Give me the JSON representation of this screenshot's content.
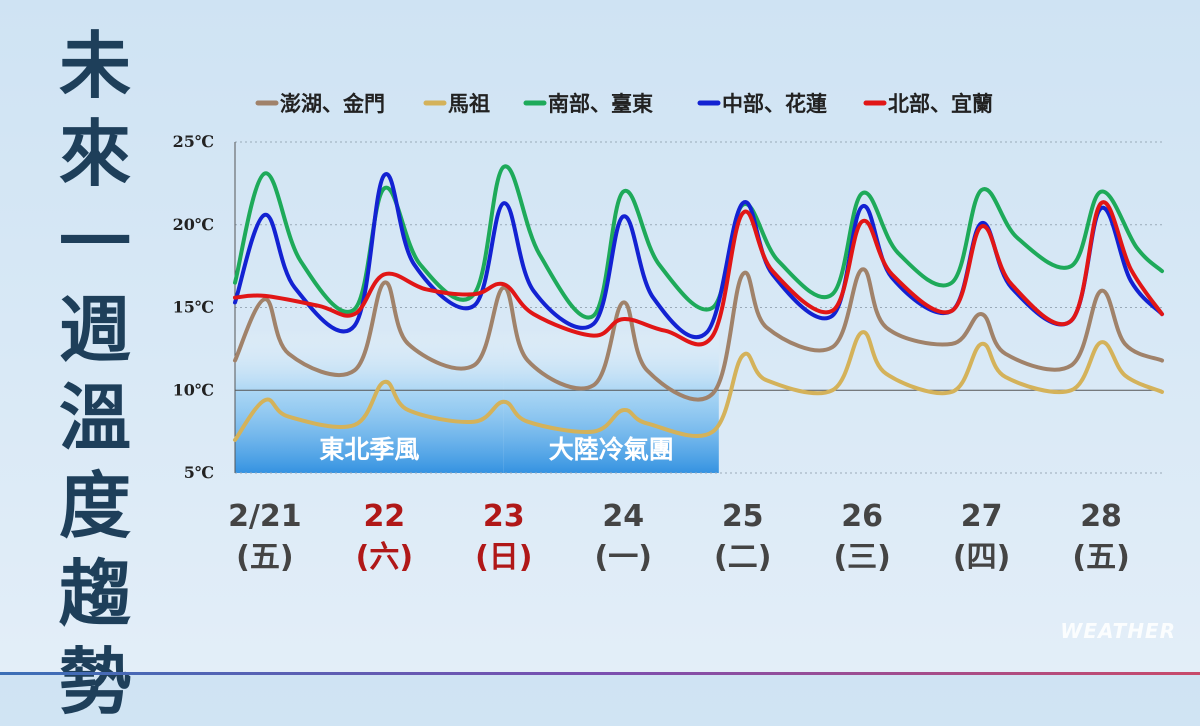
{
  "title_chars": [
    "未",
    "來",
    "一",
    "週",
    "溫",
    "度",
    "趨",
    "勢"
  ],
  "watermark": "WEATHER",
  "colors": {
    "axis_text": "#222222",
    "weekend": "#b01818",
    "weekday": "#444444",
    "title": "#1e3f5a"
  },
  "chart_data": {
    "type": "line",
    "title": "未來一週溫度趨勢",
    "ylim": [
      5,
      25
    ],
    "yticks": [
      5,
      10,
      15,
      20,
      25
    ],
    "ytick_labels": [
      "5℃",
      "10℃",
      "15℃",
      "20℃",
      "25℃"
    ],
    "xlim": [
      0,
      7.76
    ],
    "days": [
      {
        "date": "2/21",
        "weekday": "(五)",
        "weekend": false
      },
      {
        "date": "22",
        "weekday": "(六)",
        "weekend": true
      },
      {
        "date": "23",
        "weekday": "(日)",
        "weekend": true
      },
      {
        "date": "24",
        "weekday": "(一)",
        "weekend": false
      },
      {
        "date": "25",
        "weekday": "(二)",
        "weekend": false
      },
      {
        "date": "26",
        "weekday": "(三)",
        "weekend": false
      },
      {
        "date": "27",
        "weekday": "(四)",
        "weekend": false
      },
      {
        "date": "28",
        "weekday": "(五)",
        "weekend": false
      }
    ],
    "regimes": [
      {
        "label": "東北季風",
        "x0": 0,
        "x1": 2.25
      },
      {
        "label": "大陸冷氣團",
        "x0": 2.25,
        "x1": 4.05
      }
    ],
    "legend": {
      "placement": "top"
    },
    "series": [
      {
        "name": "澎湖、金門",
        "color": "#a0826a",
        "points": [
          [
            0,
            11.8
          ],
          [
            0.25,
            15.5
          ],
          [
            0.45,
            12.2
          ],
          [
            1.0,
            11.2
          ],
          [
            1.25,
            16.5
          ],
          [
            1.45,
            12.8
          ],
          [
            2.0,
            11.5
          ],
          [
            2.25,
            16.2
          ],
          [
            2.45,
            11.8
          ],
          [
            3.0,
            10.3
          ],
          [
            3.25,
            15.3
          ],
          [
            3.45,
            11.2
          ],
          [
            4.0,
            9.8
          ],
          [
            4.25,
            17.0
          ],
          [
            4.45,
            13.8
          ],
          [
            5.0,
            12.6
          ],
          [
            5.25,
            17.3
          ],
          [
            5.45,
            13.8
          ],
          [
            6.0,
            12.8
          ],
          [
            6.25,
            14.6
          ],
          [
            6.45,
            12.2
          ],
          [
            7.0,
            11.5
          ],
          [
            7.25,
            16.0
          ],
          [
            7.45,
            12.8
          ],
          [
            7.76,
            11.8
          ]
        ]
      },
      {
        "name": "馬祖",
        "color": "#d4b25a",
        "points": [
          [
            0,
            7.0
          ],
          [
            0.25,
            9.4
          ],
          [
            0.45,
            8.4
          ],
          [
            1.0,
            7.9
          ],
          [
            1.25,
            10.5
          ],
          [
            1.45,
            8.8
          ],
          [
            2.0,
            8.1
          ],
          [
            2.25,
            9.3
          ],
          [
            2.45,
            8.1
          ],
          [
            3.0,
            7.5
          ],
          [
            3.25,
            8.8
          ],
          [
            3.45,
            8.0
          ],
          [
            4.0,
            7.5
          ],
          [
            4.25,
            12.1
          ],
          [
            4.45,
            10.6
          ],
          [
            5.0,
            10.0
          ],
          [
            5.25,
            13.5
          ],
          [
            5.45,
            11.0
          ],
          [
            6.0,
            9.9
          ],
          [
            6.25,
            12.8
          ],
          [
            6.45,
            10.8
          ],
          [
            7.0,
            10.0
          ],
          [
            7.25,
            12.9
          ],
          [
            7.45,
            10.9
          ],
          [
            7.76,
            9.9
          ]
        ]
      },
      {
        "name": "南部、臺東",
        "color": "#1eaa5a",
        "points": [
          [
            0,
            16.5
          ],
          [
            0.25,
            23.1
          ],
          [
            0.55,
            17.8
          ],
          [
            1.0,
            14.9
          ],
          [
            1.25,
            22.2
          ],
          [
            1.55,
            17.6
          ],
          [
            2.0,
            15.8
          ],
          [
            2.25,
            23.5
          ],
          [
            2.55,
            18.2
          ],
          [
            3.0,
            14.5
          ],
          [
            3.25,
            22.0
          ],
          [
            3.55,
            17.6
          ],
          [
            4.0,
            15.0
          ],
          [
            4.25,
            21.2
          ],
          [
            4.55,
            17.8
          ],
          [
            5.0,
            15.8
          ],
          [
            5.25,
            21.9
          ],
          [
            5.55,
            18.3
          ],
          [
            6.0,
            16.5
          ],
          [
            6.25,
            22.1
          ],
          [
            6.55,
            19.2
          ],
          [
            7.0,
            17.5
          ],
          [
            7.25,
            22.0
          ],
          [
            7.55,
            18.6
          ],
          [
            7.76,
            17.2
          ]
        ]
      },
      {
        "name": "中部、花蓮",
        "color": "#1322d2",
        "points": [
          [
            0,
            15.3
          ],
          [
            0.25,
            20.6
          ],
          [
            0.5,
            16.2
          ],
          [
            1.0,
            13.9
          ],
          [
            1.25,
            23.0
          ],
          [
            1.5,
            17.6
          ],
          [
            2.0,
            15.1
          ],
          [
            2.25,
            21.3
          ],
          [
            2.5,
            16.0
          ],
          [
            3.0,
            14.0
          ],
          [
            3.25,
            20.5
          ],
          [
            3.5,
            15.6
          ],
          [
            3.95,
            13.5
          ],
          [
            4.25,
            21.3
          ],
          [
            4.5,
            17.0
          ],
          [
            5.0,
            14.5
          ],
          [
            5.25,
            21.1
          ],
          [
            5.5,
            16.8
          ],
          [
            6.0,
            14.8
          ],
          [
            6.25,
            20.1
          ],
          [
            6.5,
            16.2
          ],
          [
            7.0,
            14.2
          ],
          [
            7.25,
            21.0
          ],
          [
            7.5,
            16.6
          ],
          [
            7.76,
            14.6
          ]
        ]
      },
      {
        "name": "北部、宜蘭",
        "color": "#e11616",
        "points": [
          [
            0,
            15.6
          ],
          [
            0.25,
            15.7
          ],
          [
            0.7,
            15.1
          ],
          [
            1.0,
            14.6
          ],
          [
            1.25,
            17.0
          ],
          [
            1.6,
            16.1
          ],
          [
            2.0,
            15.8
          ],
          [
            2.25,
            16.4
          ],
          [
            2.5,
            14.6
          ],
          [
            3.0,
            13.3
          ],
          [
            3.25,
            14.3
          ],
          [
            3.6,
            13.6
          ],
          [
            4.0,
            13.3
          ],
          [
            4.25,
            20.7
          ],
          [
            4.5,
            17.2
          ],
          [
            5.0,
            14.8
          ],
          [
            5.25,
            20.2
          ],
          [
            5.5,
            17.0
          ],
          [
            6.0,
            14.8
          ],
          [
            6.25,
            19.9
          ],
          [
            6.5,
            16.4
          ],
          [
            7.0,
            14.2
          ],
          [
            7.25,
            21.3
          ],
          [
            7.5,
            17.3
          ],
          [
            7.76,
            14.6
          ]
        ]
      }
    ]
  }
}
